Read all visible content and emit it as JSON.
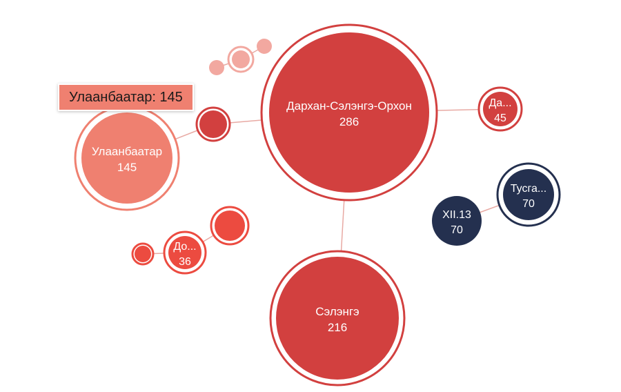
{
  "chart_data": {
    "type": "bubble",
    "colors": {
      "red": "#d2403f",
      "salmon": "#ef8070",
      "light": "#f2a8a0",
      "coral": "#ec4b40",
      "navy": "#24304f",
      "link": "#e8a9a3"
    },
    "nodes": [
      {
        "id": "dso",
        "label": "Дархан-Сэлэнгэ-Орхон",
        "value": 286,
        "color": "red",
        "ring": true
      },
      {
        "id": "selenge",
        "label": "Сэлэнгэ",
        "value": 216,
        "color": "red",
        "ring": true
      },
      {
        "id": "ulaanbaatar",
        "label": "Улаанбаатар",
        "value": 145,
        "color": "salmon",
        "ring": true
      },
      {
        "id": "darkhan",
        "label": "Да...",
        "value": 45,
        "color": "red",
        "ring": true
      },
      {
        "id": "tusgal",
        "label": "Тусга...",
        "value": 70,
        "color": "navy",
        "ring": true
      },
      {
        "id": "xii13",
        "label": "XII.13",
        "value": 70,
        "color": "navy",
        "ring": false
      },
      {
        "id": "do",
        "label": "До...",
        "value": 36,
        "color": "coral",
        "ring": true
      },
      {
        "id": "small-1",
        "label": "",
        "value": null,
        "color": "red",
        "ring": true
      },
      {
        "id": "small-2",
        "label": "",
        "value": null,
        "color": "coral",
        "ring": true
      },
      {
        "id": "small-3",
        "label": "",
        "value": null,
        "color": "coral",
        "ring": true
      },
      {
        "id": "small-4",
        "label": "",
        "value": null,
        "color": "light",
        "ring": false
      },
      {
        "id": "small-5",
        "label": "",
        "value": null,
        "color": "light",
        "ring": true
      },
      {
        "id": "small-6",
        "label": "",
        "value": null,
        "color": "light",
        "ring": false
      }
    ],
    "links": [
      [
        "dso",
        "selenge"
      ],
      [
        "dso",
        "darkhan"
      ],
      [
        "dso",
        "small-1"
      ],
      [
        "small-1",
        "ulaanbaatar"
      ],
      [
        "tusgal",
        "xii13"
      ],
      [
        "do",
        "small-2"
      ],
      [
        "do",
        "small-3"
      ],
      [
        "small-5",
        "small-4"
      ],
      [
        "small-5",
        "small-6"
      ]
    ]
  },
  "tooltip": {
    "text": "Улаанбаатар: 145"
  }
}
